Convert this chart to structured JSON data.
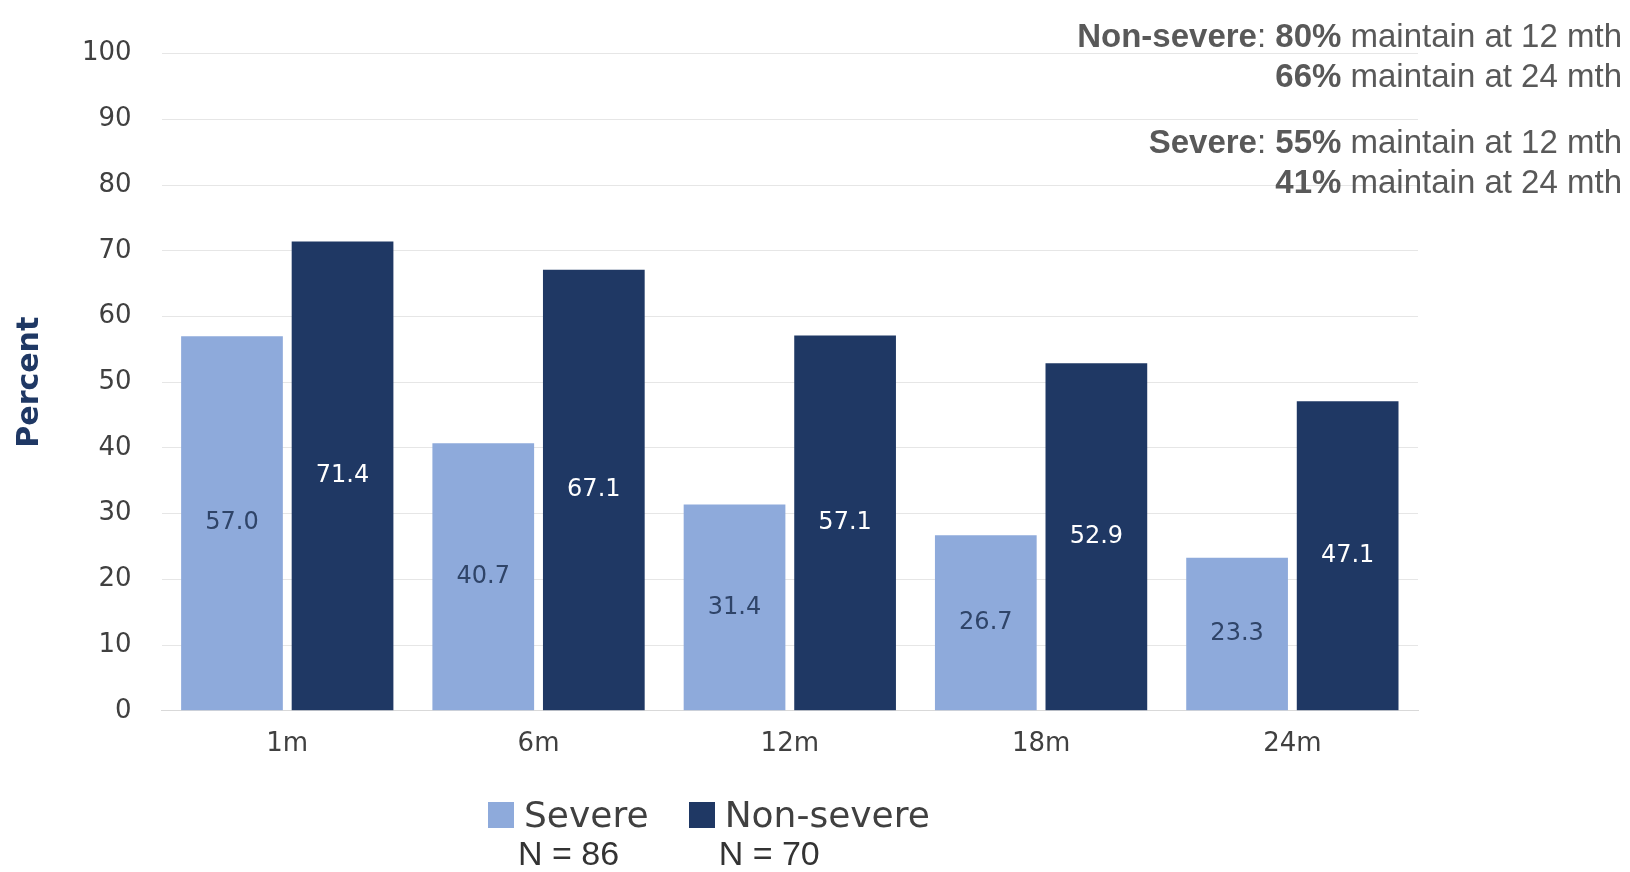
{
  "chart_data": {
    "type": "bar",
    "ylabel": "Percent",
    "categories": [
      "1m",
      "6m",
      "12m",
      "18m",
      "24m"
    ],
    "series": [
      {
        "name": "Severe",
        "color": "#8eaadb",
        "values": [
          57.0,
          40.7,
          31.4,
          26.7,
          23.3
        ],
        "value_labels": [
          "57.0",
          "40.7",
          "31.4",
          "26.7",
          "23.3"
        ]
      },
      {
        "name": "Non-severe",
        "color": "#1f3864",
        "values": [
          71.4,
          67.1,
          57.1,
          52.9,
          47.1
        ],
        "value_labels": [
          "71.4",
          "67.1",
          "57.1",
          "52.9",
          "47.1"
        ]
      }
    ],
    "ylim": [
      0,
      100
    ],
    "yticks": [
      0,
      10,
      20,
      30,
      40,
      50,
      60,
      70,
      80,
      90,
      100
    ],
    "grid": "y",
    "legend": "bottom",
    "annotations": [
      "Non-severe: 80% maintain at 12 mth",
      "66% maintain at 24 mth",
      "Severe: 55% maintain at 12 mth",
      "41% maintain at 24 mth",
      "N = 86",
      "N = 70"
    ]
  }
}
